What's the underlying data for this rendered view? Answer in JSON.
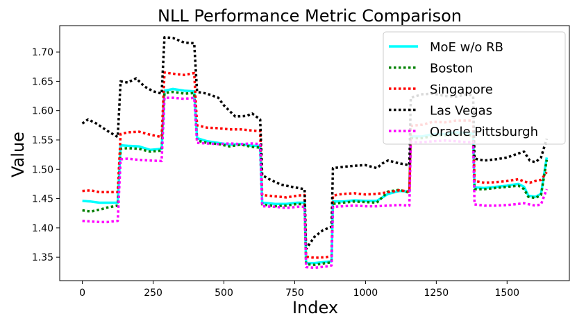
{
  "chart_data": {
    "type": "line",
    "title": "NLL Performance Metric Comparison",
    "xlabel": "Index",
    "ylabel": "Value",
    "xlim": [
      -80,
      1720
    ],
    "ylim": [
      1.31,
      1.745
    ],
    "xticks": [
      0,
      250,
      500,
      750,
      1000,
      1250,
      1500
    ],
    "yticks": [
      1.35,
      1.4,
      1.45,
      1.5,
      1.55,
      1.6,
      1.65,
      1.7
    ],
    "ytick_labels": [
      "1.35",
      "1.40",
      "1.45",
      "1.50",
      "1.55",
      "1.60",
      "1.65",
      "1.70"
    ],
    "legend_position": "upper right",
    "series": [
      {
        "name": "MoE w/o RB",
        "color": "#00ffff",
        "style": "solid",
        "points": [
          [
            0,
            1.446
          ],
          [
            30,
            1.445
          ],
          [
            60,
            1.443
          ],
          [
            90,
            1.443
          ],
          [
            125,
            1.443
          ],
          [
            135,
            1.541
          ],
          [
            160,
            1.54
          ],
          [
            200,
            1.539
          ],
          [
            240,
            1.533
          ],
          [
            280,
            1.535
          ],
          [
            290,
            1.634
          ],
          [
            320,
            1.637
          ],
          [
            360,
            1.634
          ],
          [
            395,
            1.633
          ],
          [
            405,
            1.553
          ],
          [
            440,
            1.548
          ],
          [
            480,
            1.545
          ],
          [
            520,
            1.542
          ],
          [
            560,
            1.543
          ],
          [
            600,
            1.54
          ],
          [
            628,
            1.54
          ],
          [
            635,
            1.443
          ],
          [
            680,
            1.441
          ],
          [
            720,
            1.441
          ],
          [
            760,
            1.443
          ],
          [
            785,
            1.443
          ],
          [
            790,
            1.34
          ],
          [
            820,
            1.34
          ],
          [
            860,
            1.342
          ],
          [
            880,
            1.343
          ],
          [
            885,
            1.445
          ],
          [
            920,
            1.445
          ],
          [
            960,
            1.447
          ],
          [
            1000,
            1.446
          ],
          [
            1040,
            1.446
          ],
          [
            1080,
            1.458
          ],
          [
            1120,
            1.463
          ],
          [
            1155,
            1.462
          ],
          [
            1160,
            1.556
          ],
          [
            1200,
            1.556
          ],
          [
            1240,
            1.56
          ],
          [
            1280,
            1.56
          ],
          [
            1320,
            1.563
          ],
          [
            1360,
            1.562
          ],
          [
            1380,
            1.561
          ],
          [
            1385,
            1.469
          ],
          [
            1420,
            1.468
          ],
          [
            1460,
            1.47
          ],
          [
            1500,
            1.472
          ],
          [
            1540,
            1.475
          ],
          [
            1560,
            1.47
          ],
          [
            1575,
            1.455
          ],
          [
            1600,
            1.453
          ],
          [
            1620,
            1.458
          ],
          [
            1640,
            1.52
          ]
        ]
      },
      {
        "name": "Boston",
        "color": "#008000",
        "style": "dotted",
        "points": [
          [
            0,
            1.43
          ],
          [
            30,
            1.428
          ],
          [
            60,
            1.431
          ],
          [
            90,
            1.435
          ],
          [
            125,
            1.438
          ],
          [
            135,
            1.535
          ],
          [
            160,
            1.536
          ],
          [
            200,
            1.535
          ],
          [
            240,
            1.53
          ],
          [
            280,
            1.532
          ],
          [
            290,
            1.63
          ],
          [
            320,
            1.632
          ],
          [
            360,
            1.629
          ],
          [
            395,
            1.63
          ],
          [
            405,
            1.549
          ],
          [
            440,
            1.545
          ],
          [
            480,
            1.543
          ],
          [
            520,
            1.539
          ],
          [
            560,
            1.542
          ],
          [
            600,
            1.538
          ],
          [
            628,
            1.537
          ],
          [
            635,
            1.44
          ],
          [
            680,
            1.437
          ],
          [
            720,
            1.438
          ],
          [
            760,
            1.441
          ],
          [
            785,
            1.44
          ],
          [
            790,
            1.338
          ],
          [
            820,
            1.337
          ],
          [
            860,
            1.34
          ],
          [
            880,
            1.341
          ],
          [
            885,
            1.441
          ],
          [
            920,
            1.443
          ],
          [
            960,
            1.445
          ],
          [
            1000,
            1.444
          ],
          [
            1040,
            1.443
          ],
          [
            1080,
            1.462
          ],
          [
            1120,
            1.465
          ],
          [
            1155,
            1.46
          ],
          [
            1160,
            1.553
          ],
          [
            1200,
            1.553
          ],
          [
            1240,
            1.557
          ],
          [
            1280,
            1.558
          ],
          [
            1320,
            1.56
          ],
          [
            1360,
            1.558
          ],
          [
            1380,
            1.558
          ],
          [
            1385,
            1.466
          ],
          [
            1420,
            1.466
          ],
          [
            1460,
            1.468
          ],
          [
            1500,
            1.47
          ],
          [
            1540,
            1.472
          ],
          [
            1560,
            1.466
          ],
          [
            1575,
            1.453
          ],
          [
            1600,
            1.451
          ],
          [
            1620,
            1.456
          ],
          [
            1640,
            1.516
          ]
        ]
      },
      {
        "name": "Singapore",
        "color": "#ff0000",
        "style": "dotted",
        "points": [
          [
            0,
            1.463
          ],
          [
            30,
            1.464
          ],
          [
            60,
            1.461
          ],
          [
            90,
            1.461
          ],
          [
            125,
            1.461
          ],
          [
            135,
            1.56
          ],
          [
            160,
            1.563
          ],
          [
            200,
            1.564
          ],
          [
            240,
            1.559
          ],
          [
            280,
            1.555
          ],
          [
            290,
            1.665
          ],
          [
            320,
            1.663
          ],
          [
            360,
            1.661
          ],
          [
            395,
            1.664
          ],
          [
            405,
            1.575
          ],
          [
            440,
            1.571
          ],
          [
            480,
            1.57
          ],
          [
            520,
            1.568
          ],
          [
            560,
            1.568
          ],
          [
            600,
            1.566
          ],
          [
            628,
            1.565
          ],
          [
            635,
            1.456
          ],
          [
            680,
            1.454
          ],
          [
            720,
            1.452
          ],
          [
            760,
            1.455
          ],
          [
            785,
            1.456
          ],
          [
            790,
            1.351
          ],
          [
            820,
            1.349
          ],
          [
            860,
            1.35
          ],
          [
            880,
            1.352
          ],
          [
            885,
            1.455
          ],
          [
            920,
            1.458
          ],
          [
            960,
            1.459
          ],
          [
            1000,
            1.457
          ],
          [
            1040,
            1.458
          ],
          [
            1080,
            1.461
          ],
          [
            1120,
            1.464
          ],
          [
            1155,
            1.462
          ],
          [
            1160,
            1.574
          ],
          [
            1200,
            1.576
          ],
          [
            1240,
            1.581
          ],
          [
            1280,
            1.58
          ],
          [
            1320,
            1.583
          ],
          [
            1360,
            1.583
          ],
          [
            1380,
            1.583
          ],
          [
            1385,
            1.48
          ],
          [
            1420,
            1.477
          ],
          [
            1460,
            1.478
          ],
          [
            1500,
            1.48
          ],
          [
            1540,
            1.483
          ],
          [
            1560,
            1.479
          ],
          [
            1580,
            1.477
          ],
          [
            1600,
            1.48
          ],
          [
            1620,
            1.482
          ],
          [
            1640,
            1.495
          ]
        ]
      },
      {
        "name": "Las Vegas",
        "color": "#000000",
        "style": "dotted",
        "points": [
          [
            0,
            1.578
          ],
          [
            20,
            1.585
          ],
          [
            50,
            1.578
          ],
          [
            90,
            1.565
          ],
          [
            125,
            1.555
          ],
          [
            135,
            1.65
          ],
          [
            160,
            1.648
          ],
          [
            190,
            1.655
          ],
          [
            220,
            1.641
          ],
          [
            250,
            1.633
          ],
          [
            280,
            1.629
          ],
          [
            290,
            1.725
          ],
          [
            320,
            1.724
          ],
          [
            360,
            1.716
          ],
          [
            395,
            1.715
          ],
          [
            405,
            1.632
          ],
          [
            440,
            1.629
          ],
          [
            480,
            1.622
          ],
          [
            500,
            1.609
          ],
          [
            540,
            1.59
          ],
          [
            580,
            1.591
          ],
          [
            600,
            1.595
          ],
          [
            628,
            1.585
          ],
          [
            635,
            1.49
          ],
          [
            660,
            1.483
          ],
          [
            700,
            1.474
          ],
          [
            740,
            1.47
          ],
          [
            785,
            1.466
          ],
          [
            790,
            1.364
          ],
          [
            820,
            1.385
          ],
          [
            850,
            1.396
          ],
          [
            880,
            1.402
          ],
          [
            885,
            1.502
          ],
          [
            920,
            1.504
          ],
          [
            960,
            1.506
          ],
          [
            1000,
            1.507
          ],
          [
            1040,
            1.502
          ],
          [
            1060,
            1.51
          ],
          [
            1080,
            1.515
          ],
          [
            1120,
            1.51
          ],
          [
            1155,
            1.507
          ],
          [
            1160,
            1.622
          ],
          [
            1200,
            1.628
          ],
          [
            1240,
            1.629
          ],
          [
            1280,
            1.625
          ],
          [
            1320,
            1.624
          ],
          [
            1360,
            1.628
          ],
          [
            1380,
            1.625
          ],
          [
            1385,
            1.518
          ],
          [
            1420,
            1.515
          ],
          [
            1460,
            1.517
          ],
          [
            1500,
            1.52
          ],
          [
            1540,
            1.527
          ],
          [
            1560,
            1.53
          ],
          [
            1580,
            1.515
          ],
          [
            1600,
            1.512
          ],
          [
            1620,
            1.52
          ],
          [
            1640,
            1.552
          ]
        ]
      },
      {
        "name": "Oracle Pittsburgh",
        "color": "#ff00ff",
        "style": "dotted",
        "points": [
          [
            0,
            1.412
          ],
          [
            30,
            1.411
          ],
          [
            60,
            1.41
          ],
          [
            90,
            1.41
          ],
          [
            125,
            1.412
          ],
          [
            135,
            1.517
          ],
          [
            160,
            1.518
          ],
          [
            200,
            1.516
          ],
          [
            240,
            1.515
          ],
          [
            280,
            1.514
          ],
          [
            290,
            1.622
          ],
          [
            320,
            1.622
          ],
          [
            360,
            1.62
          ],
          [
            395,
            1.622
          ],
          [
            405,
            1.545
          ],
          [
            440,
            1.544
          ],
          [
            480,
            1.543
          ],
          [
            520,
            1.544
          ],
          [
            560,
            1.543
          ],
          [
            600,
            1.544
          ],
          [
            628,
            1.543
          ],
          [
            635,
            1.437
          ],
          [
            680,
            1.436
          ],
          [
            720,
            1.434
          ],
          [
            760,
            1.436
          ],
          [
            785,
            1.436
          ],
          [
            790,
            1.333
          ],
          [
            820,
            1.332
          ],
          [
            860,
            1.334
          ],
          [
            880,
            1.336
          ],
          [
            885,
            1.436
          ],
          [
            920,
            1.437
          ],
          [
            960,
            1.438
          ],
          [
            1000,
            1.437
          ],
          [
            1040,
            1.437
          ],
          [
            1080,
            1.438
          ],
          [
            1120,
            1.439
          ],
          [
            1155,
            1.438
          ],
          [
            1160,
            1.546
          ],
          [
            1200,
            1.546
          ],
          [
            1240,
            1.548
          ],
          [
            1280,
            1.549
          ],
          [
            1320,
            1.548
          ],
          [
            1360,
            1.546
          ],
          [
            1380,
            1.547
          ],
          [
            1385,
            1.44
          ],
          [
            1420,
            1.438
          ],
          [
            1460,
            1.438
          ],
          [
            1500,
            1.439
          ],
          [
            1540,
            1.441
          ],
          [
            1560,
            1.442
          ],
          [
            1580,
            1.44
          ],
          [
            1600,
            1.438
          ],
          [
            1620,
            1.44
          ],
          [
            1640,
            1.466
          ]
        ]
      }
    ]
  }
}
